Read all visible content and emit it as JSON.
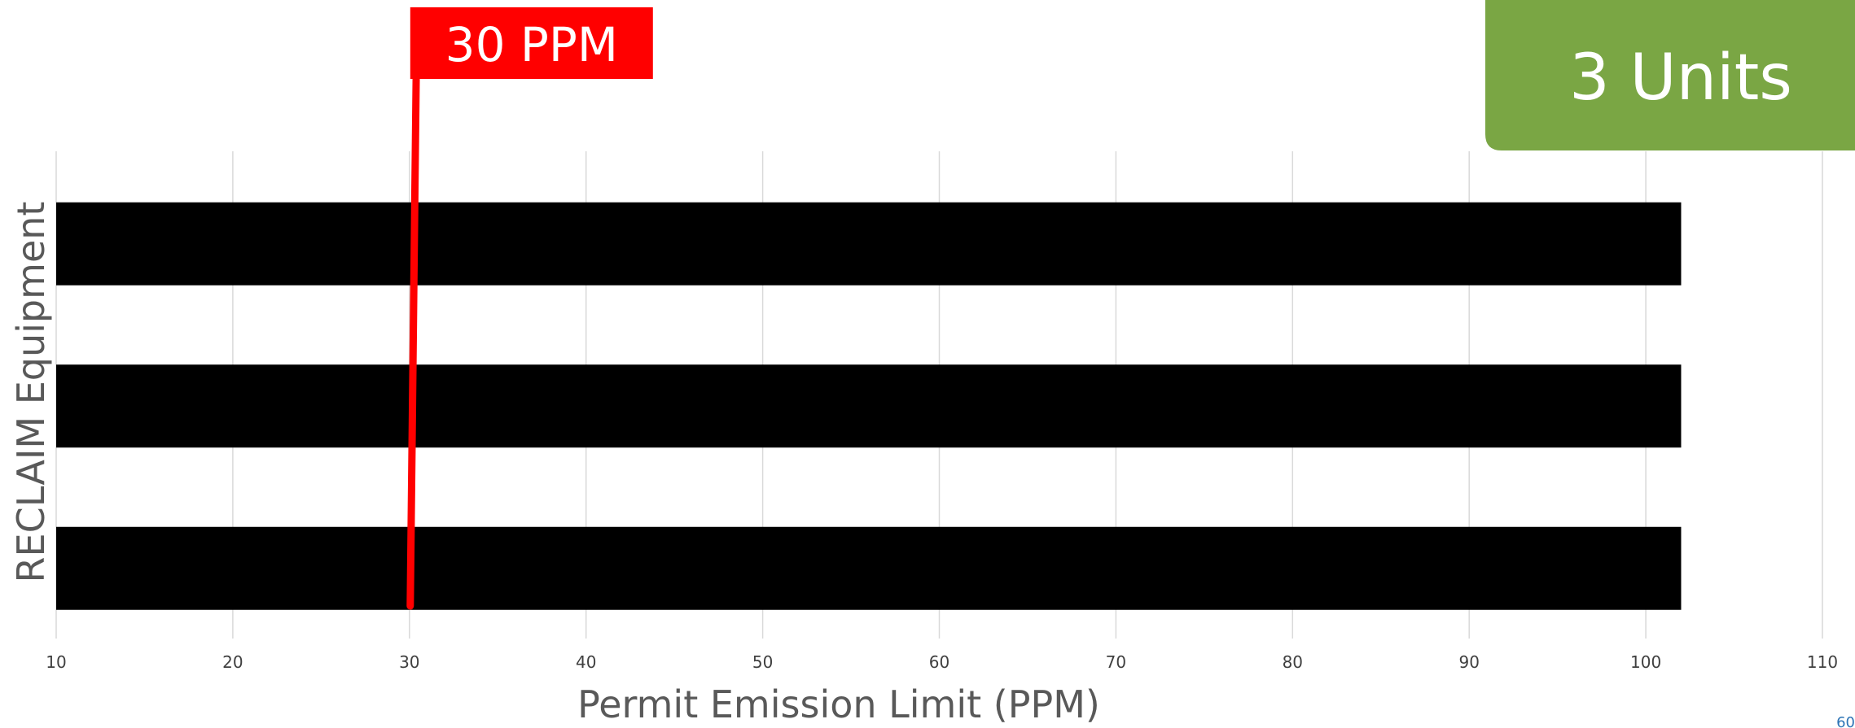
{
  "badge": {
    "label": "3 Units",
    "color": "#7aa644"
  },
  "threshold_flag": {
    "label": "30 PPM",
    "value": 30,
    "color": "#ff0000"
  },
  "page_number": "60",
  "chart_data": {
    "type": "bar",
    "orientation": "horizontal",
    "categories": [
      "",
      "",
      ""
    ],
    "values": [
      102,
      102,
      102
    ],
    "bar_color": "#000000",
    "xlabel": "Permit Emission Limit (PPM)",
    "ylabel": "RECLAIM Equipment",
    "xlim": [
      10,
      110
    ],
    "xticks": [
      10,
      20,
      30,
      40,
      50,
      60,
      70,
      80,
      90,
      100,
      110
    ],
    "xtick_labels": [
      "10",
      "20",
      "30",
      "40",
      "50",
      "60",
      "70",
      "80",
      "90",
      "100",
      "110"
    ],
    "grid": "vertical",
    "grid_color": "#d9d9d9",
    "reference_line": {
      "value": 30,
      "label": "30 PPM",
      "color": "#ff0000"
    }
  }
}
